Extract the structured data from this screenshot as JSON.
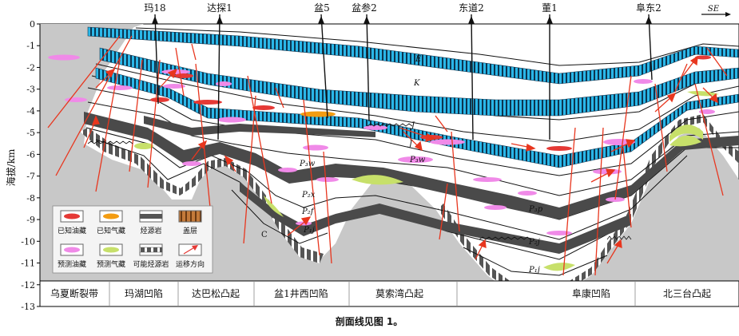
{
  "y_axis": {
    "label": "海拔/km",
    "ticks": [
      "0",
      "-1",
      "-2",
      "-3",
      "-4",
      "-5",
      "-6",
      "-7",
      "-8",
      "-9",
      "-10",
      "-11",
      "-12",
      "-13"
    ]
  },
  "wells": [
    "玛18",
    "达探1",
    "盆5",
    "盆参2",
    "东道2",
    "董1",
    "阜东2"
  ],
  "direction": "SE",
  "strata_labels": {
    "E": "E",
    "K": "K",
    "J1": "J",
    "J2": "J",
    "P3w_left": "P₃w",
    "P3w_right": "P₃w",
    "P2x": "P₂x",
    "P2f": "P₂f",
    "P1j_left": "P₁j",
    "P3p": "P₃p",
    "P2j": "P₂j",
    "P1j_right": "P₁j",
    "C": "C"
  },
  "legend": [
    {
      "label": "已知油藏",
      "kind": "known-oil",
      "color": "#e53935"
    },
    {
      "label": "已知气藏",
      "kind": "known-gas",
      "color": "#f39c12"
    },
    {
      "label": "烃源岩",
      "kind": "source-rock",
      "color": "#555555"
    },
    {
      "label": "盖层",
      "kind": "cap-rock",
      "color": "#b0682c"
    },
    {
      "label": "预测油藏",
      "kind": "predicted-oil",
      "color": "#f08ae8"
    },
    {
      "label": "预测气藏",
      "kind": "predicted-gas",
      "color": "#c7e06a"
    },
    {
      "label": "可能烃源岩",
      "kind": "possible-source-rock",
      "color": "#555555"
    },
    {
      "label": "运移方向",
      "kind": "migration-direction",
      "color": "#e53935"
    }
  ],
  "structural_units": [
    "乌夏断裂带",
    "玛湖凹陷",
    "达巴松凸起",
    "盆1井西凹陷",
    "莫索湾凸起",
    "阜康凹陷",
    "北三台凸起"
  ],
  "caption": "剖面线见图 1。",
  "colors": {
    "basement": "#c8c8c8",
    "cyan_band": "#29b6e6",
    "dark_band": "#4a4a4a",
    "fault": "#e8361e"
  }
}
